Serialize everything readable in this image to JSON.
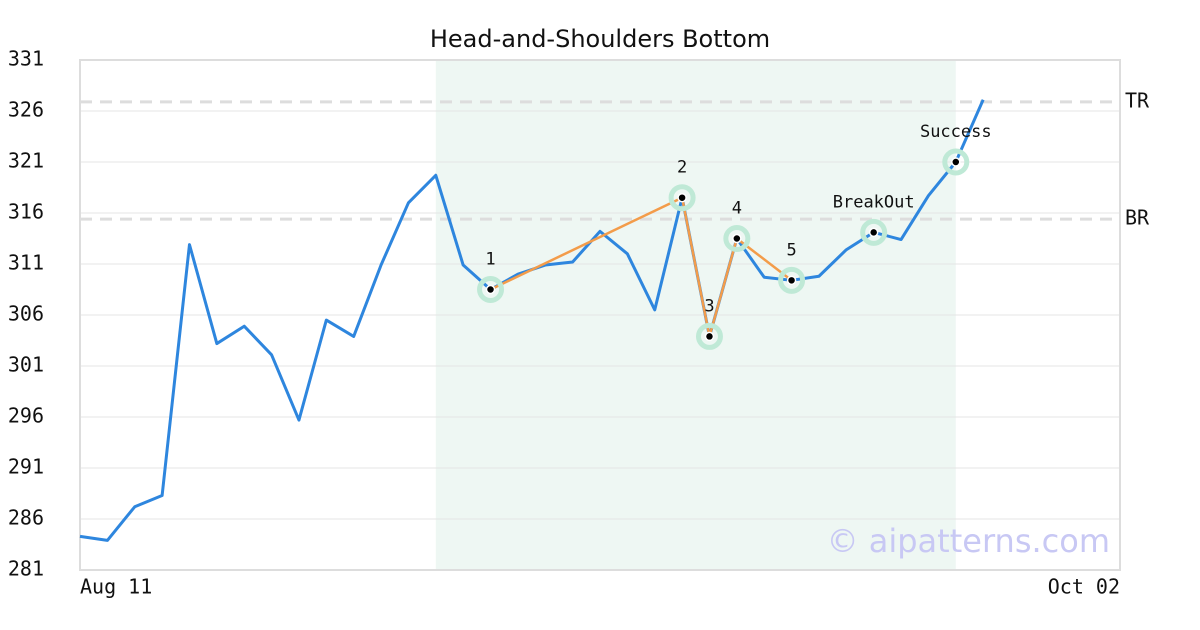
{
  "chart_data": {
    "type": "line",
    "title": "Head-and-Shoulders Bottom",
    "categories": [
      "Aug 11",
      null,
      null,
      null,
      null,
      null,
      null,
      null,
      null,
      null,
      null,
      null,
      null,
      null,
      null,
      null,
      null,
      null,
      null,
      null,
      null,
      null,
      null,
      null,
      null,
      null,
      null,
      null,
      null,
      null,
      null,
      null,
      null,
      null,
      null,
      null,
      null,
      null,
      "Oct 02"
    ],
    "values": [
      284.3,
      283.9,
      287.2,
      288.3,
      312.9,
      303.2,
      304.9,
      302.1,
      295.7,
      305.5,
      303.9,
      310.9,
      317.0,
      319.7,
      310.9,
      308.5,
      310.0,
      310.9,
      311.2,
      314.2,
      312.0,
      306.5,
      317.5,
      303.9,
      313.5,
      309.7,
      309.4,
      309.8,
      312.4,
      314.1,
      313.4,
      317.7,
      321.0,
      327.1,
      null,
      null,
      null,
      null,
      null
    ],
    "color": "#2e86de",
    "xlim": [
      0,
      38
    ],
    "ylim": [
      281,
      331
    ],
    "yticks": [
      281,
      286,
      291,
      296,
      301,
      306,
      311,
      316,
      321,
      326,
      331
    ],
    "grid": true,
    "highlight_range": [
      13,
      32
    ],
    "pattern_color": "#f39c4a",
    "patterns": [
      {
        "label": "1",
        "x": 15,
        "y": 308.5
      },
      {
        "label": "2",
        "x": 22,
        "y": 317.5
      },
      {
        "label": "3",
        "x": 23,
        "y": 303.9
      },
      {
        "label": "4",
        "x": 24,
        "y": 313.5
      },
      {
        "label": "5",
        "x": 26,
        "y": 309.4
      },
      {
        "label": "BreakOut",
        "x": 29,
        "y": 314.1
      },
      {
        "label": "Success",
        "x": 32,
        "y": 321.0
      }
    ],
    "levels": [
      {
        "label": "TR",
        "value": 326.9
      },
      {
        "label": "BR",
        "value": 315.4
      }
    ],
    "watermark": "© aipatterns.com"
  }
}
